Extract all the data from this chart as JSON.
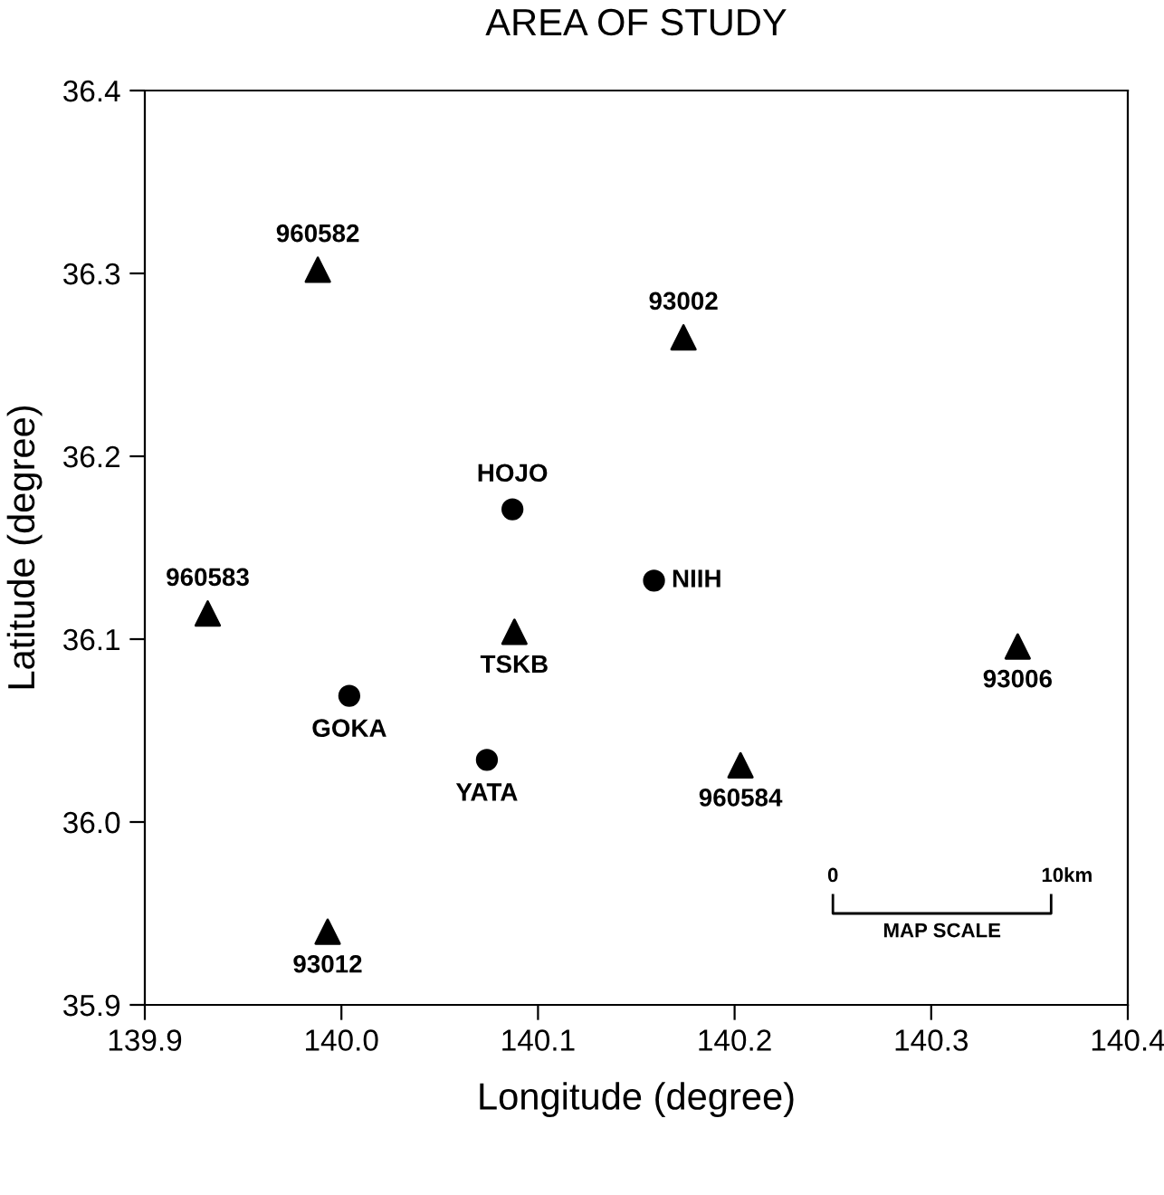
{
  "chart_data": {
    "type": "scatter",
    "title": "AREA OF STUDY",
    "xlabel": "Longitude (degree)",
    "ylabel": "Latitude (degree)",
    "series": [
      {
        "color": "#000000",
        "marker": "triangle",
        "x": [
          139.988,
          140.174,
          139.932,
          140.088,
          140.344,
          140.203,
          139.993
        ],
        "values": [
          36.302,
          36.265,
          36.114,
          36.104,
          36.096,
          36.031,
          35.94
        ]
      },
      {
        "color": "#000000",
        "marker": "circle",
        "x": [
          140.087,
          140.159,
          140.004,
          140.074
        ],
        "values": [
          36.171,
          36.132,
          36.069,
          36.034
        ]
      }
    ],
    "xlim": [
      139.9,
      140.4
    ],
    "ylim": [
      35.9,
      36.4
    ],
    "xticks": [
      {
        "value": 139.9,
        "label": "139.9"
      },
      {
        "value": 140.0,
        "label": "140.0"
      },
      {
        "value": 140.1,
        "label": "140.1"
      },
      {
        "value": 140.2,
        "label": "140.2"
      },
      {
        "value": 140.3,
        "label": "140.3"
      },
      {
        "value": 140.4,
        "label": "140.4"
      }
    ],
    "yticks": [
      {
        "value": 35.9,
        "label": "35.9"
      },
      {
        "value": 36.0,
        "label": "36.0"
      },
      {
        "value": 36.1,
        "label": "36.1"
      },
      {
        "value": 36.2,
        "label": "36.2"
      },
      {
        "value": 36.3,
        "label": "36.3"
      },
      {
        "value": 36.4,
        "label": "36.4"
      }
    ],
    "grid": false,
    "legend": false,
    "annotations": [
      {
        "text": "960582",
        "x": 139.988,
        "y": 36.302
      },
      {
        "text": "93002",
        "x": 140.174,
        "y": 36.265
      },
      {
        "text": "960583",
        "x": 139.932,
        "y": 36.114
      },
      {
        "text": "TSKB",
        "x": 140.088,
        "y": 36.104
      },
      {
        "text": "93006",
        "x": 140.344,
        "y": 36.096
      },
      {
        "text": "960584",
        "x": 140.203,
        "y": 36.031
      },
      {
        "text": "93012",
        "x": 139.993,
        "y": 35.94
      },
      {
        "text": "HOJO",
        "x": 140.087,
        "y": 36.171
      },
      {
        "text": "NIIH",
        "x": 140.159,
        "y": 36.132
      },
      {
        "text": "GOKA",
        "x": 140.004,
        "y": 36.069
      },
      {
        "text": "YATA",
        "x": 140.074,
        "y": 36.034
      },
      "0",
      "10km",
      "MAP SCALE"
    ]
  }
}
